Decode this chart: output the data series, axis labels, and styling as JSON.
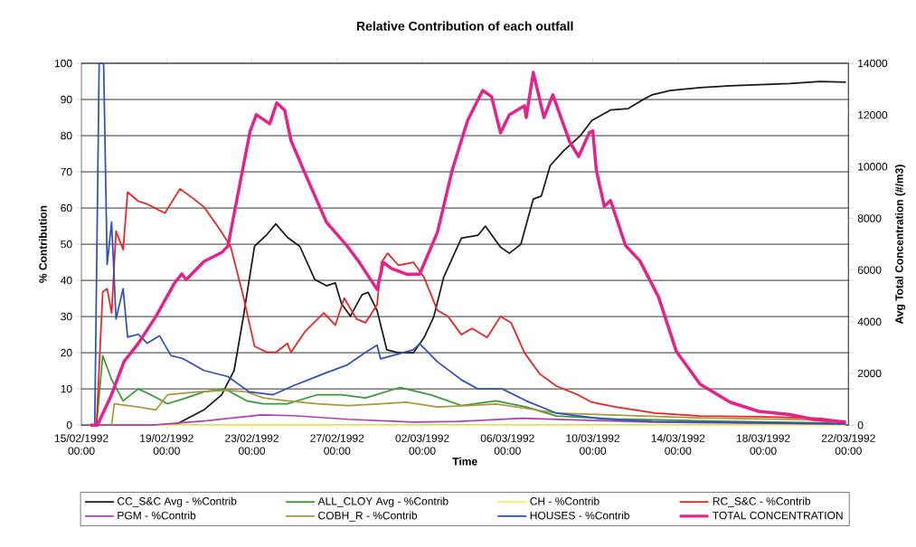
{
  "chart_data": {
    "type": "line",
    "title": "Relative Contribution of each outfall",
    "xlabel": "Time",
    "ylabel": "% Contribution",
    "y2label": "Avg Total Concentration (#/m3)",
    "xlim": [
      "1992-02-15T00:00",
      "1992-03-22T00:00"
    ],
    "xticks": [
      {
        "value": "1992-02-15T00:00",
        "label": "15/02/1992 00:00"
      },
      {
        "value": "1992-02-19T00:00",
        "label": "19/02/1992 00:00"
      },
      {
        "value": "1992-02-23T00:00",
        "label": "23/02/1992 00:00"
      },
      {
        "value": "1992-02-27T00:00",
        "label": "27/02/1992 00:00"
      },
      {
        "value": "1992-03-02T00:00",
        "label": "02/03/1992 00:00"
      },
      {
        "value": "1992-03-06T00:00",
        "label": "06/03/1992 00:00"
      },
      {
        "value": "1992-03-10T00:00",
        "label": "10/03/1992 00:00"
      },
      {
        "value": "1992-03-14T00:00",
        "label": "14/03/1992 00:00"
      },
      {
        "value": "1992-03-18T00:00",
        "label": "18/03/1992 00:00"
      },
      {
        "value": "1992-03-22T00:00",
        "label": "22/03/1992 00:00"
      }
    ],
    "ylim": [
      0,
      100
    ],
    "yticks": [
      0,
      10,
      20,
      30,
      40,
      50,
      60,
      70,
      80,
      90,
      100
    ],
    "y2lim": [
      0,
      14000
    ],
    "y2ticks": [
      0,
      2000,
      4000,
      6000,
      8000,
      10000,
      12000,
      14000
    ],
    "grid": "y",
    "legend": "bottom",
    "marker": "none",
    "line_style": "solid",
    "series": [
      {
        "name": "CC_S&C Avg - %Contrib",
        "color": "#1a1a1a",
        "x": [
          "1992-02-15T07:00",
          "1992-02-19T09:00",
          "1992-02-20T18:00",
          "1992-02-21T14:00",
          "1992-02-22T04:00",
          "1992-02-22T14:00",
          "1992-02-23T03:00",
          "1992-02-23T17:00",
          "1992-02-24T03:00",
          "1992-02-24T16:00",
          "1992-02-25T06:00",
          "1992-02-25T23:00",
          "1992-02-26T12:00",
          "1992-02-26T22:00",
          "1992-02-27T05:00",
          "1992-02-27T15:00",
          "1992-02-28T04:00",
          "1992-02-28T11:00",
          "1992-02-28T21:00",
          "1992-02-29T08:00",
          "1992-02-29T21:00",
          "1992-03-01T14:00",
          "1992-03-02T02:00",
          "1992-03-02T13:00",
          "1992-03-03T00:00",
          "1992-03-03T20:00",
          "1992-03-04T15:00",
          "1992-03-04T23:00",
          "1992-03-05T16:00",
          "1992-03-06T02:00",
          "1992-03-06T15:00",
          "1992-03-07T05:00",
          "1992-03-07T14:00",
          "1992-03-08T00:00",
          "1992-03-08T15:00",
          "1992-03-09T10:00",
          "1992-03-09T23:00",
          "1992-03-10T20:00",
          "1992-03-11T16:00",
          "1992-03-12T06:00",
          "1992-03-12T19:00",
          "1992-03-13T15:00",
          "1992-03-15T01:00",
          "1992-03-16T11:00",
          "1992-03-19T06:00",
          "1992-03-20T16:00",
          "1992-03-21T21:00"
        ],
        "values": [
          0,
          0,
          4.2,
          8.4,
          15.1,
          29.3,
          49.4,
          52.7,
          55.6,
          51.9,
          49.4,
          40.2,
          38.5,
          39.3,
          33.5,
          30.1,
          36,
          36.7,
          31.7,
          20.8,
          20,
          20,
          24.2,
          30,
          40.8,
          51.7,
          52.5,
          55,
          49.2,
          47.5,
          50,
          62.5,
          63.3,
          71.7,
          75.8,
          80,
          84.2,
          87.1,
          87.5,
          89.6,
          91.3,
          92.5,
          93.3,
          93.8,
          94.4,
          95,
          94.8
        ]
      },
      {
        "name": "ALL_CLOY Avg - %Contrib",
        "color": "#3a9a3a",
        "x": [
          "1992-02-15T17:00",
          "1992-02-16T00:00",
          "1992-02-16T10:00",
          "1992-02-16T23:00",
          "1992-02-17T16:00",
          "1992-02-18T06:00",
          "1992-02-19T01:00",
          "1992-02-19T22:00",
          "1992-02-20T18:00",
          "1992-02-21T18:00",
          "1992-02-22T18:00",
          "1992-02-23T13:00",
          "1992-02-24T16:00",
          "1992-02-26T02:00",
          "1992-02-27T05:00",
          "1992-02-28T08:00",
          "1992-02-29T23:00",
          "1992-03-02T10:00",
          "1992-03-03T20:00",
          "1992-03-05T11:00",
          "1992-03-06T21:00",
          "1992-03-08T07:00",
          "1992-03-11T02:00",
          "1992-03-14T20:00",
          "1992-03-21T21:00"
        ],
        "values": [
          0,
          19.2,
          12.6,
          6.7,
          10,
          8.4,
          5.9,
          7.5,
          9.2,
          10,
          6.7,
          5.9,
          5.9,
          8.4,
          8.4,
          7.5,
          10.4,
          8.3,
          5.4,
          6.7,
          5,
          2.5,
          1.7,
          1.2,
          0.5
        ]
      },
      {
        "name": "CH - %Contrib",
        "color": "#f4f060",
        "x": [
          "1992-02-15T07:00",
          "1992-03-21T21:00"
        ],
        "values": [
          0,
          0
        ]
      },
      {
        "name": "RC_S&C - %Contrib",
        "color": "#f02020",
        "x": [
          "1992-02-15T17:00",
          "1992-02-16T00:00",
          "1992-02-16T05:00",
          "1992-02-16T10:00",
          "1992-02-16T15:00",
          "1992-02-16T23:00",
          "1992-02-17T04:00",
          "1992-02-17T16:00",
          "1992-02-18T02:00",
          "1992-02-18T22:00",
          "1992-02-19T15:00",
          "1992-02-20T05:00",
          "1992-02-20T18:00",
          "1992-02-21T11:00",
          "1992-02-22T00:00",
          "1992-02-22T14:00",
          "1992-02-23T03:00",
          "1992-02-23T17:00",
          "1992-02-24T03:00",
          "1992-02-24T16:00",
          "1992-02-24T20:00",
          "1992-02-25T12:00",
          "1992-02-26T09:00",
          "1992-02-26T22:00",
          "1992-02-27T08:00",
          "1992-02-27T22:00",
          "1992-02-28T08:00",
          "1992-02-28T21:00",
          "1992-02-29T02:00",
          "1992-02-29T09:00",
          "1992-02-29T21:00",
          "1992-03-01T14:00",
          "1992-03-02T02:00",
          "1992-03-02T17:00",
          "1992-03-03T05:00",
          "1992-03-03T20:00",
          "1992-03-04T08:00",
          "1992-03-05T01:00",
          "1992-03-05T16:00",
          "1992-03-06T04:00",
          "1992-03-06T19:00",
          "1992-03-07T12:00",
          "1992-03-08T07:00",
          "1992-03-09T08:00",
          "1992-03-09T23:00",
          "1992-03-11T02:00",
          "1992-03-12T22:00",
          "1992-03-15T01:00",
          "1992-03-17T19:00",
          "1992-03-20T16:00",
          "1992-03-21T21:00"
        ],
        "values": [
          0,
          36.8,
          37.7,
          31,
          53.6,
          48.5,
          64.4,
          61.9,
          61.1,
          58.6,
          65.3,
          62.8,
          60.3,
          54.4,
          49.4,
          36,
          21.8,
          20.1,
          20.1,
          22.6,
          20.1,
          25.9,
          31,
          27.6,
          35.1,
          29.3,
          28.3,
          33.3,
          45,
          47.5,
          44.2,
          45,
          40.8,
          31.7,
          30,
          25,
          26.7,
          24.2,
          30,
          28.3,
          20,
          14.2,
          10.8,
          8.3,
          6.3,
          5,
          3.3,
          2.5,
          2.3,
          1.9,
          0.8
        ]
      },
      {
        "name": "PGM - %Contrib",
        "color": "#b040b0",
        "x": [
          "1992-02-15T07:00",
          "1992-02-18T08:00",
          "1992-02-20T21:00",
          "1992-02-23T11:00",
          "1992-02-24T23:00",
          "1992-02-27T12:00",
          "1992-03-01T14:00",
          "1992-03-03T15:00",
          "1992-03-06T16:00",
          "1992-03-08T17:00",
          "1992-03-12T19:00",
          "1992-03-21T21:00"
        ],
        "values": [
          0,
          0,
          1.2,
          2.8,
          2.6,
          1.6,
          0.8,
          1.0,
          1.9,
          1.5,
          0.8,
          0.3
        ]
      },
      {
        "name": "COBH_R - %Contrib",
        "color": "#a89a3a",
        "x": [
          "1992-02-16T10:00",
          "1992-02-16T13:00",
          "1992-02-17T16:00",
          "1992-02-18T12:00",
          "1992-02-19T01:00",
          "1992-02-20T11:00",
          "1992-02-21T21:00",
          "1992-02-22T18:00",
          "1992-02-23T13:00",
          "1992-02-24T16:00",
          "1992-02-26T02:00",
          "1992-02-27T12:00",
          "1992-02-28T21:00",
          "1992-03-01T06:00",
          "1992-03-02T17:00",
          "1992-03-04T03:00",
          "1992-03-05T11:00",
          "1992-03-06T21:00",
          "1992-03-08T07:00",
          "1992-03-10T11:00",
          "1992-03-14T20:00",
          "1992-03-19T23:00",
          "1992-03-21T21:00"
        ],
        "values": [
          0,
          5.9,
          5,
          4.2,
          8.4,
          9.2,
          9.6,
          9.2,
          7.5,
          6.7,
          5.9,
          5.4,
          5.8,
          6.3,
          5,
          5.4,
          5.8,
          4.6,
          3.3,
          2.9,
          2.0,
          1.5,
          0.5
        ]
      },
      {
        "name": "HOUSES - %Contrib",
        "color": "#3050c0",
        "x": [
          "1992-02-15T15:00",
          "1992-02-15T20:00",
          "1992-02-16T01:00",
          "1992-02-16T05:00",
          "1992-02-16T10:00",
          "1992-02-16T15:00",
          "1992-02-16T23:00",
          "1992-02-17T04:00",
          "1992-02-17T16:00",
          "1992-02-18T02:00",
          "1992-02-18T16:00",
          "1992-02-19T05:00",
          "1992-02-19T18:00",
          "1992-02-20T18:00",
          "1992-02-21T21:00",
          "1992-02-22T21:00",
          "1992-02-24T00:00",
          "1992-02-24T23:00",
          "1992-02-26T09:00",
          "1992-02-27T12:00",
          "1992-02-28T08:00",
          "1992-02-28T21:00",
          "1992-02-29T01:00",
          "1992-03-01T14:00",
          "1992-03-01T21:00",
          "1992-03-02T17:00",
          "1992-03-03T20:00",
          "1992-03-04T15:00",
          "1992-03-05T18:00",
          "1992-03-06T21:00",
          "1992-03-08T07:00",
          "1992-03-10T11:00",
          "1992-03-12T19:00",
          "1992-03-21T21:00"
        ],
        "values": [
          0,
          100,
          100,
          44.4,
          56.1,
          29.3,
          37.7,
          24.3,
          25.1,
          22.6,
          24.7,
          19.2,
          18.4,
          15.1,
          13.4,
          9.2,
          8.4,
          10.9,
          14.2,
          16.7,
          20.1,
          22.1,
          18.3,
          20.8,
          22.5,
          17.5,
          12.5,
          10,
          10,
          6.7,
          3.3,
          1.7,
          1.0,
          0.3
        ]
      },
      {
        "name": "TOTAL CONCENTRATION",
        "color": "#e8208a",
        "axis": "y2",
        "x": [
          "1992-02-15T10:00",
          "1992-02-15T18:00",
          "1992-02-16T10:00",
          "1992-02-17T00:00",
          "1992-02-17T16:00",
          "1992-02-18T12:00",
          "1992-02-19T09:00",
          "1992-02-19T17:00",
          "1992-02-19T22:00",
          "1992-02-20T18:00",
          "1992-02-21T14:00",
          "1992-02-21T21:00",
          "1992-02-22T10:00",
          "1992-02-22T22:00",
          "1992-02-23T05:00",
          "1992-02-23T20:00",
          "1992-02-24T04:00",
          "1992-02-24T13:00",
          "1992-02-24T20:00",
          "1992-02-25T12:00",
          "1992-02-26T12:00",
          "1992-02-27T12:00",
          "1992-02-28T01:00",
          "1992-02-28T21:00",
          "1992-02-29T04:00",
          "1992-02-29T13:00",
          "1992-03-01T06:00",
          "1992-03-01T21:00",
          "1992-03-02T17:00",
          "1992-03-03T10:00",
          "1992-03-04T03:00",
          "1992-03-04T20:00",
          "1992-03-05T06:00",
          "1992-03-05T16:00",
          "1992-03-06T02:00",
          "1992-03-06T19:00",
          "1992-03-06T21:00",
          "1992-03-07T05:00",
          "1992-03-07T17:00",
          "1992-03-08T03:00",
          "1992-03-08T22:00",
          "1992-03-09T08:00",
          "1992-03-09T20:00",
          "1992-03-10T00:00",
          "1992-03-10T04:00",
          "1992-03-10T13:00",
          "1992-03-10T20:00",
          "1992-03-11T13:00",
          "1992-03-12T05:00",
          "1992-03-13T02:00",
          "1992-03-13T22:00",
          "1992-03-15T01:00",
          "1992-03-16T11:00",
          "1992-03-17T19:00",
          "1992-03-19T06:00",
          "1992-03-20T08:00",
          "1992-03-21T21:00"
        ],
        "values": [
          0,
          0,
          1180,
          2460,
          3160,
          4210,
          5500,
          5850,
          5630,
          6330,
          6680,
          6920,
          9250,
          11370,
          12010,
          11660,
          12470,
          12180,
          11020,
          9730,
          7850,
          6900,
          6300,
          5250,
          6300,
          6060,
          5840,
          5840,
          7460,
          9910,
          11790,
          12950,
          12710,
          11310,
          12010,
          12360,
          11900,
          13650,
          11900,
          12780,
          10960,
          10390,
          11310,
          11380,
          9860,
          8460,
          8690,
          6940,
          6360,
          4960,
          2860,
          1580,
          880,
          530,
          410,
          230,
          120
        ]
      }
    ]
  }
}
